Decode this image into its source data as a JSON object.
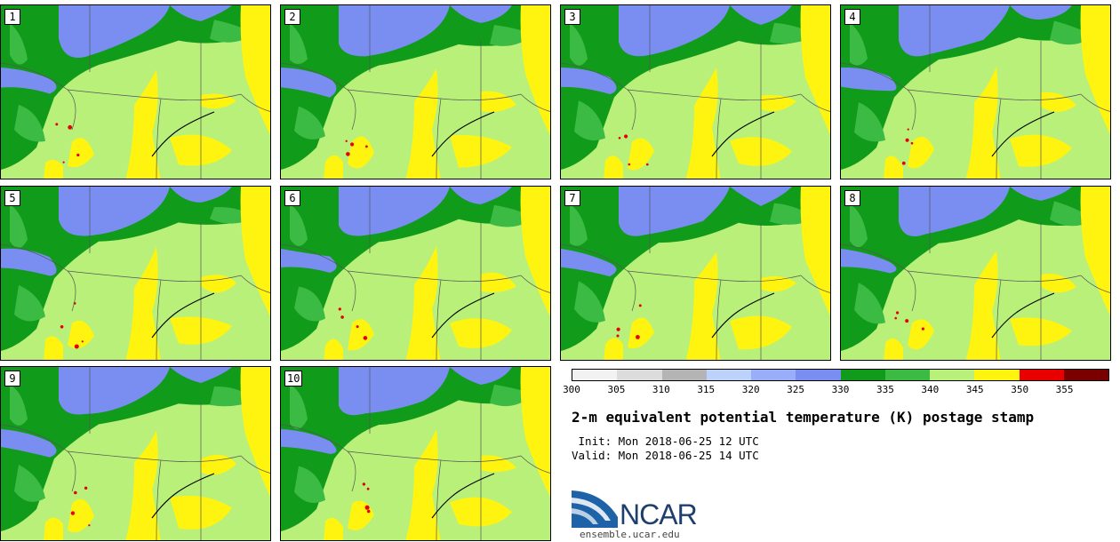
{
  "panels": [
    {
      "label": "1"
    },
    {
      "label": "2"
    },
    {
      "label": "3"
    },
    {
      "label": "4"
    },
    {
      "label": "5"
    },
    {
      "label": "6"
    },
    {
      "label": "7"
    },
    {
      "label": "8"
    },
    {
      "label": "9"
    },
    {
      "label": "10"
    }
  ],
  "colorbar": {
    "colors": [
      "#f2f2f2",
      "#dcdcdc",
      "#b4b4b4",
      "#bcd2fa",
      "#98aef8",
      "#7a8ef2",
      "#119b1b",
      "#3bba44",
      "#b8f07a",
      "#fff410",
      "#e80000",
      "#7a0000"
    ],
    "ticks": [
      "300",
      "305",
      "310",
      "315",
      "320",
      "325",
      "330",
      "335",
      "340",
      "345",
      "350",
      "355"
    ]
  },
  "title": "2-m equivalent potential temperature (K) postage stamp",
  "init_line": " Init: Mon 2018-06-25 12 UTC",
  "valid_line": "Valid: Mon 2018-06-25 14 UTC",
  "logo_text": "NCAR",
  "site": "ensemble.ucar.edu"
}
